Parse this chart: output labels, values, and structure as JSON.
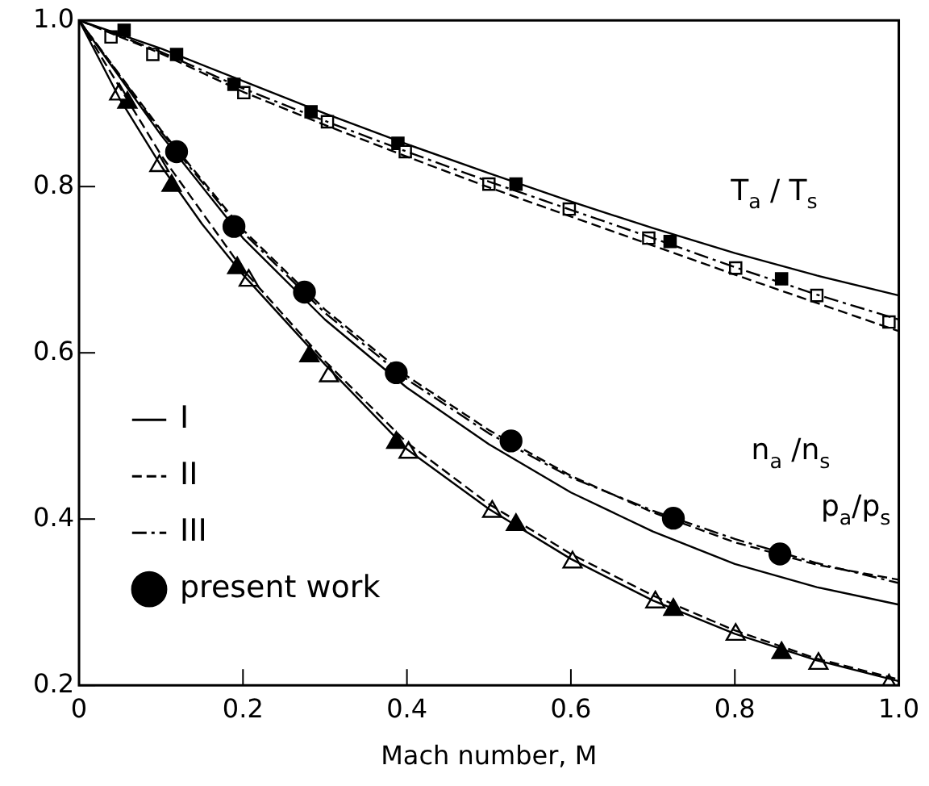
{
  "chart_data": {
    "type": "line",
    "xlabel": "Mach number, M",
    "xlim": [
      0,
      1
    ],
    "ylim": [
      0.2,
      1
    ],
    "xticks": [
      0,
      {
        "value": 0.2,
        "label": "0.2"
      },
      {
        "value": 0.4,
        "label": "0.4"
      },
      {
        "value": 0.6,
        "label": "0.6"
      },
      {
        "value": 0.8,
        "label": "0.8"
      },
      {
        "value": 1,
        "label": "1.0"
      }
    ],
    "yticks": [
      0.2,
      0.4,
      0.6,
      0.8,
      {
        "value": 1,
        "label": "1.0"
      }
    ],
    "grid": false,
    "legend": "left",
    "annotations": [
      "T$_{a}$ / T$_{s}$",
      "n$_{a}$ /n$_{s}$",
      "p$_{a}$/p$_{s}$"
    ],
    "series": [
      {
        "name": "I",
        "line_style": "solid",
        "color": "#000000",
        "x": [
          0,
          0.1,
          0.2,
          0.3,
          0.4,
          0.5,
          0.6,
          0.7,
          0.8,
          0.9,
          1
        ],
        "values": [
          1,
          0.966,
          0.927,
          0.888,
          0.851,
          0.816,
          0.782,
          0.75,
          0.72,
          0.693,
          0.669
        ]
      },
      {
        "name": "II",
        "line_style": "dashed",
        "color": "#000000",
        "x": [
          0,
          0.1,
          0.2,
          0.3,
          0.4,
          0.5,
          0.6,
          0.7,
          0.8,
          0.9,
          1
        ],
        "values": [
          1,
          0.96,
          0.914,
          0.874,
          0.836,
          0.799,
          0.764,
          0.729,
          0.694,
          0.66,
          0.626
        ]
      },
      {
        "name": "III",
        "line_style": "dotted",
        "color": "#000000",
        "x": [
          0,
          0.1,
          0.2,
          0.3,
          0.4,
          0.5,
          0.6,
          0.7,
          0.8,
          0.9,
          1
        ],
        "values": [
          1,
          0.962,
          0.918,
          0.879,
          0.842,
          0.806,
          0.772,
          0.738,
          0.703,
          0.67,
          0.64
        ]
      },
      {
        "line_style": "solid",
        "color": "#000000",
        "x": [
          0,
          0.1,
          0.2,
          0.3,
          0.4,
          0.5,
          0.6,
          0.7,
          0.8,
          0.9,
          1
        ],
        "values": [
          1,
          0.862,
          0.738,
          0.64,
          0.558,
          0.49,
          0.432,
          0.385,
          0.346,
          0.318,
          0.297
        ]
      },
      {
        "line_style": "dashed",
        "color": "#000000",
        "x": [
          0,
          0.1,
          0.2,
          0.3,
          0.4,
          0.5,
          0.6,
          0.7,
          0.8,
          0.9,
          1
        ],
        "values": [
          1,
          0.868,
          0.748,
          0.652,
          0.572,
          0.507,
          0.452,
          0.408,
          0.372,
          0.345,
          0.327
        ]
      },
      {
        "line_style": "dotted",
        "color": "#000000",
        "x": [
          0,
          0.1,
          0.2,
          0.3,
          0.4,
          0.5,
          0.6,
          0.7,
          0.8,
          0.9,
          1
        ],
        "values": [
          1,
          0.866,
          0.745,
          0.648,
          0.568,
          0.503,
          0.45,
          0.41,
          0.376,
          0.347,
          0.323
        ]
      },
      {
        "line_style": "solid",
        "color": "#000000",
        "x": [
          0,
          0.05,
          0.1,
          0.15,
          0.2,
          0.3,
          0.4,
          0.5,
          0.6,
          0.7,
          0.8,
          0.9,
          1
        ],
        "values": [
          1,
          0.905,
          0.825,
          0.755,
          0.694,
          0.586,
          0.484,
          0.412,
          0.352,
          0.302,
          0.262,
          0.23,
          0.205
        ]
      },
      {
        "line_style": "dashed",
        "color": "#000000",
        "x": [
          0,
          0.1,
          0.2,
          0.3,
          0.4,
          0.5,
          0.6,
          0.7,
          0.8,
          0.9,
          1
        ],
        "values": [
          1,
          0.838,
          0.7,
          0.59,
          0.492,
          0.418,
          0.358,
          0.308,
          0.266,
          0.232,
          0.207
        ]
      },
      {
        "type": "scatter",
        "marker": "square",
        "color": "#ffffff",
        "x": [
          0.039,
          0.09,
          0.201,
          0.303,
          0.398,
          0.5,
          0.598,
          0.695,
          0.801,
          0.9,
          0.988
        ],
        "values": [
          0.98,
          0.959,
          0.913,
          0.878,
          0.842,
          0.803,
          0.773,
          0.738,
          0.702,
          0.669,
          0.637
        ]
      },
      {
        "type": "scatter",
        "marker": "triangle",
        "color": "#ffffff",
        "x": [
          0.049,
          0.098,
          0.207,
          0.305,
          0.402,
          0.504,
          0.602,
          0.703,
          0.801,
          0.902,
          0.988
        ],
        "values": [
          0.911,
          0.825,
          0.687,
          0.572,
          0.48,
          0.409,
          0.348,
          0.3,
          0.261,
          0.226,
          0.2
        ]
      },
      {
        "type": "scatter",
        "marker": "square",
        "color": "#000000",
        "x": [
          0.055,
          0.119,
          0.189,
          0.283,
          0.389,
          0.533,
          0.721,
          0.857
        ],
        "values": [
          0.988,
          0.959,
          0.923,
          0.89,
          0.852,
          0.803,
          0.734,
          0.689
        ]
      },
      {
        "name": "present work",
        "type": "scatter",
        "marker": "circle",
        "color": "#000000",
        "x": [
          0.119,
          0.189,
          0.275,
          0.387,
          0.527,
          0.725,
          0.855
        ],
        "values": [
          0.842,
          0.752,
          0.673,
          0.576,
          0.494,
          0.401,
          0.358
        ]
      },
      {
        "type": "scatter",
        "marker": "triangle",
        "color": "#000000",
        "x": [
          0.059,
          0.113,
          0.193,
          0.281,
          0.387,
          0.533,
          0.725,
          0.857
        ],
        "values": [
          0.901,
          0.801,
          0.702,
          0.596,
          0.492,
          0.393,
          0.291,
          0.239
        ]
      }
    ]
  }
}
